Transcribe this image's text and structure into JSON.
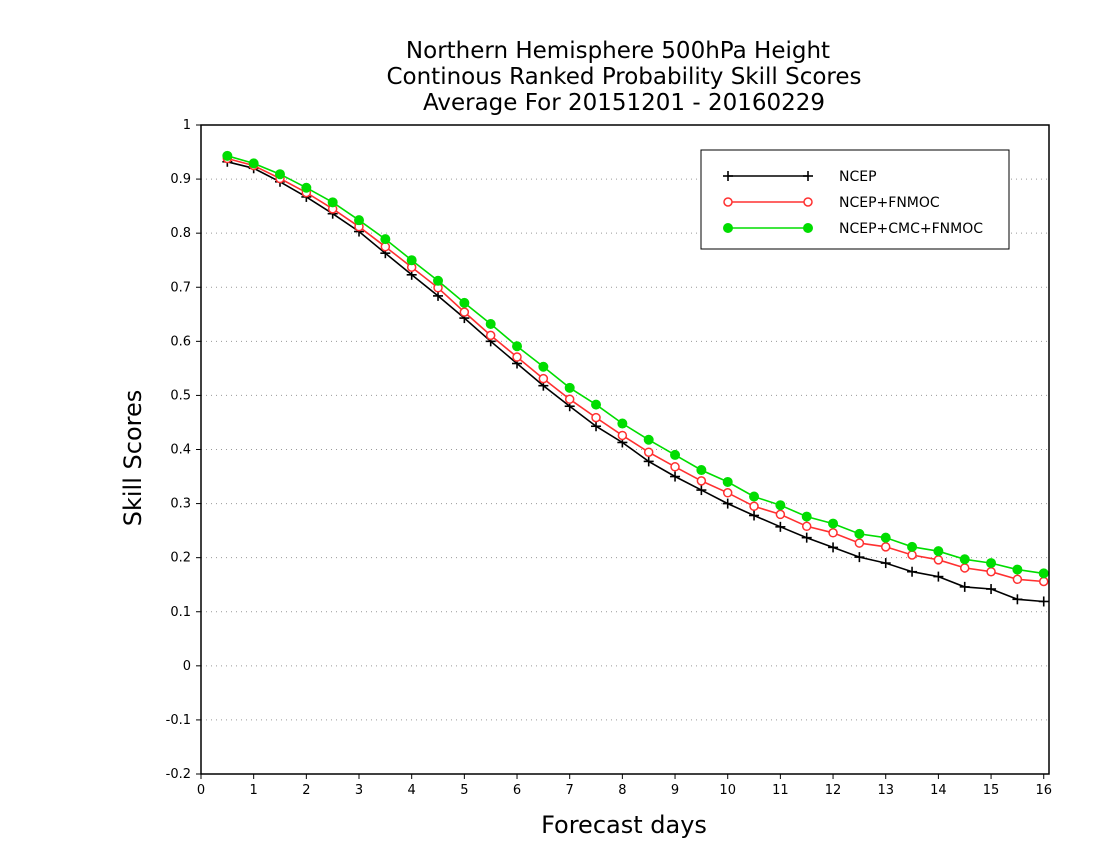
{
  "chart_data": {
    "type": "line",
    "title": [
      "Northern Hemisphere 500hPa Height",
      "Continous Ranked Probability Skill Scores",
      "Average For 20151201 - 20160229"
    ],
    "xlabel": "Forecast days",
    "ylabel": "Skill Scores",
    "xlim": [
      0,
      16.1
    ],
    "ylim": [
      -0.2,
      1
    ],
    "xticks": [
      0,
      1,
      2,
      3,
      4,
      5,
      6,
      7,
      8,
      9,
      10,
      11,
      12,
      13,
      14,
      15,
      16
    ],
    "xtick_labels": [
      "0",
      "1",
      "2",
      "3",
      "4",
      "5",
      "6",
      "7",
      "8",
      "9",
      "10",
      "11",
      "12",
      "13",
      "14",
      "15",
      "16"
    ],
    "yticks": [
      -0.2,
      -0.1,
      0,
      0.1,
      0.2,
      0.3,
      0.4,
      0.5,
      0.6,
      0.7,
      0.8,
      0.9,
      1
    ],
    "ytick_labels": [
      "-0.2",
      "-0.1",
      "0",
      "0.1",
      "0.2",
      "0.3",
      "0.4",
      "0.5",
      "0.6",
      "0.7",
      "0.8",
      "0.9",
      "1"
    ],
    "grid": true,
    "legend_position": "top-right",
    "x": [
      0.5,
      1,
      1.5,
      2,
      2.5,
      3,
      3.5,
      4,
      4.5,
      5,
      5.5,
      6,
      6.5,
      7,
      7.5,
      8,
      8.5,
      9,
      9.5,
      10,
      10.5,
      11,
      11.5,
      12,
      12.5,
      13,
      13.5,
      14,
      14.5,
      15,
      15.5,
      16
    ],
    "series": [
      {
        "name": "NCEP",
        "color": "#000000",
        "marker": "plus",
        "values": [
          0.932,
          0.92,
          0.895,
          0.867,
          0.836,
          0.803,
          0.763,
          0.723,
          0.684,
          0.643,
          0.6,
          0.559,
          0.518,
          0.48,
          0.443,
          0.413,
          0.378,
          0.35,
          0.325,
          0.3,
          0.278,
          0.257,
          0.237,
          0.219,
          0.201,
          0.19,
          0.174,
          0.165,
          0.146,
          0.142,
          0.123,
          0.119
        ]
      },
      {
        "name": "NCEP+FNMOC",
        "color": "#ff3030",
        "marker": "open-circle",
        "values": [
          0.938,
          0.925,
          0.901,
          0.875,
          0.845,
          0.812,
          0.775,
          0.737,
          0.699,
          0.654,
          0.611,
          0.571,
          0.531,
          0.493,
          0.459,
          0.426,
          0.395,
          0.368,
          0.342,
          0.32,
          0.295,
          0.28,
          0.258,
          0.246,
          0.227,
          0.22,
          0.205,
          0.196,
          0.181,
          0.174,
          0.16,
          0.156
        ]
      },
      {
        "name": "NCEP+CMC+FNMOC",
        "color": "#00dd00",
        "marker": "filled-circle",
        "values": [
          0.943,
          0.929,
          0.909,
          0.884,
          0.857,
          0.824,
          0.789,
          0.75,
          0.712,
          0.671,
          0.632,
          0.591,
          0.553,
          0.514,
          0.483,
          0.448,
          0.418,
          0.39,
          0.362,
          0.34,
          0.313,
          0.297,
          0.276,
          0.263,
          0.244,
          0.237,
          0.22,
          0.212,
          0.197,
          0.19,
          0.178,
          0.171
        ]
      }
    ]
  }
}
